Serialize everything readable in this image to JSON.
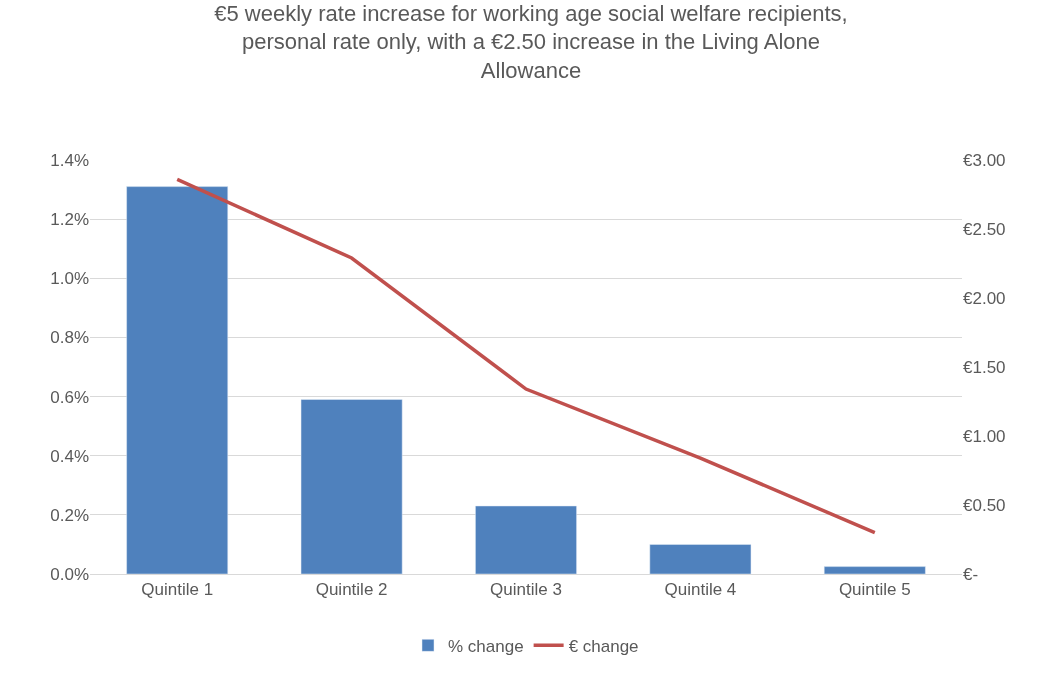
{
  "chart_data": {
    "type": "bar",
    "title": "€5 weekly rate increase for working age social welfare recipients, personal rate only, with a €2.50 increase in the Living Alone Allowance",
    "categories": [
      "Quintile 1",
      "Quintile 2",
      "Quintile 3",
      "Quintile 4",
      "Quintile 5"
    ],
    "series": [
      {
        "name": "% change",
        "color": "#4f81bd",
        "values": [
          1.31,
          0.59,
          0.23,
          0.1,
          0.025
        ]
      },
      {
        "name": "€ change",
        "type": "line",
        "axis": "y2",
        "color": "#c0504d",
        "values": [
          2.86,
          2.29,
          1.34,
          0.84,
          0.3
        ]
      }
    ],
    "ylim": [
      0,
      1.4
    ],
    "yticks": [
      {
        "value": 0,
        "label": "0.0%"
      },
      {
        "value": 0.2,
        "label": "0.2%"
      },
      {
        "value": 0.4,
        "label": "0.4%"
      },
      {
        "value": 0.6,
        "label": "0.6%"
      },
      {
        "value": 0.8,
        "label": "0.8%"
      },
      {
        "value": 1.0,
        "label": "1.0%"
      },
      {
        "value": 1.2,
        "label": "1.2%"
      },
      {
        "value": 1.4,
        "label": "1.4%"
      }
    ],
    "y2lim": [
      0,
      3
    ],
    "y2ticks": [
      {
        "value": 0,
        "label": "€-"
      },
      {
        "value": 0.5,
        "label": "€0.50"
      },
      {
        "value": 1.0,
        "label": "€1.00"
      },
      {
        "value": 1.5,
        "label": "€1.50"
      },
      {
        "value": 2.0,
        "label": "€2.00"
      },
      {
        "value": 2.5,
        "label": "€2.50"
      },
      {
        "value": 3.0,
        "label": "€3.00"
      }
    ],
    "grid": "y",
    "legend": "bottom",
    "marker": "none",
    "line_style": "solid"
  }
}
